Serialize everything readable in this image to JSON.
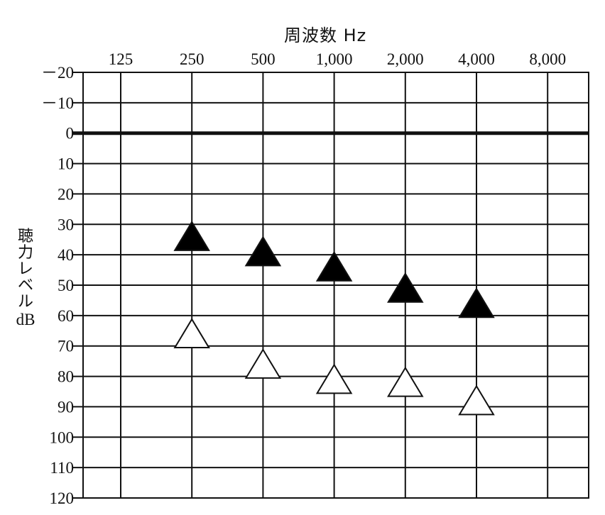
{
  "chart_data": {
    "type": "scatter",
    "xlabel": "周波数 Hz",
    "ylabel_chars": [
      "聴",
      "力",
      "レ",
      "ベ",
      "ル"
    ],
    "ylabel_unit": "dB",
    "x_ticks": [
      "125",
      "250",
      "500",
      "1,000",
      "2,000",
      "4,000",
      "8,000"
    ],
    "x_values": [
      125,
      250,
      500,
      1000,
      2000,
      4000,
      8000
    ],
    "y_ticks": [
      "－20",
      "－10",
      "0",
      "10",
      "20",
      "30",
      "40",
      "50",
      "60",
      "70",
      "80",
      "90",
      "100",
      "110",
      "120"
    ],
    "ylim": [
      -20,
      120
    ],
    "y_inverted": true,
    "x_scale": "log2",
    "grid": true,
    "series": [
      {
        "marker": "filled-triangle",
        "color": "#000000",
        "x": [
          250,
          500,
          1000,
          2000,
          4000
        ],
        "y": [
          35,
          40,
          45,
          52,
          57
        ]
      },
      {
        "marker": "open-triangle",
        "color": "#ffffff",
        "x": [
          250,
          500,
          1000,
          2000,
          4000
        ],
        "y": [
          67,
          77,
          82,
          83,
          89
        ]
      }
    ]
  }
}
